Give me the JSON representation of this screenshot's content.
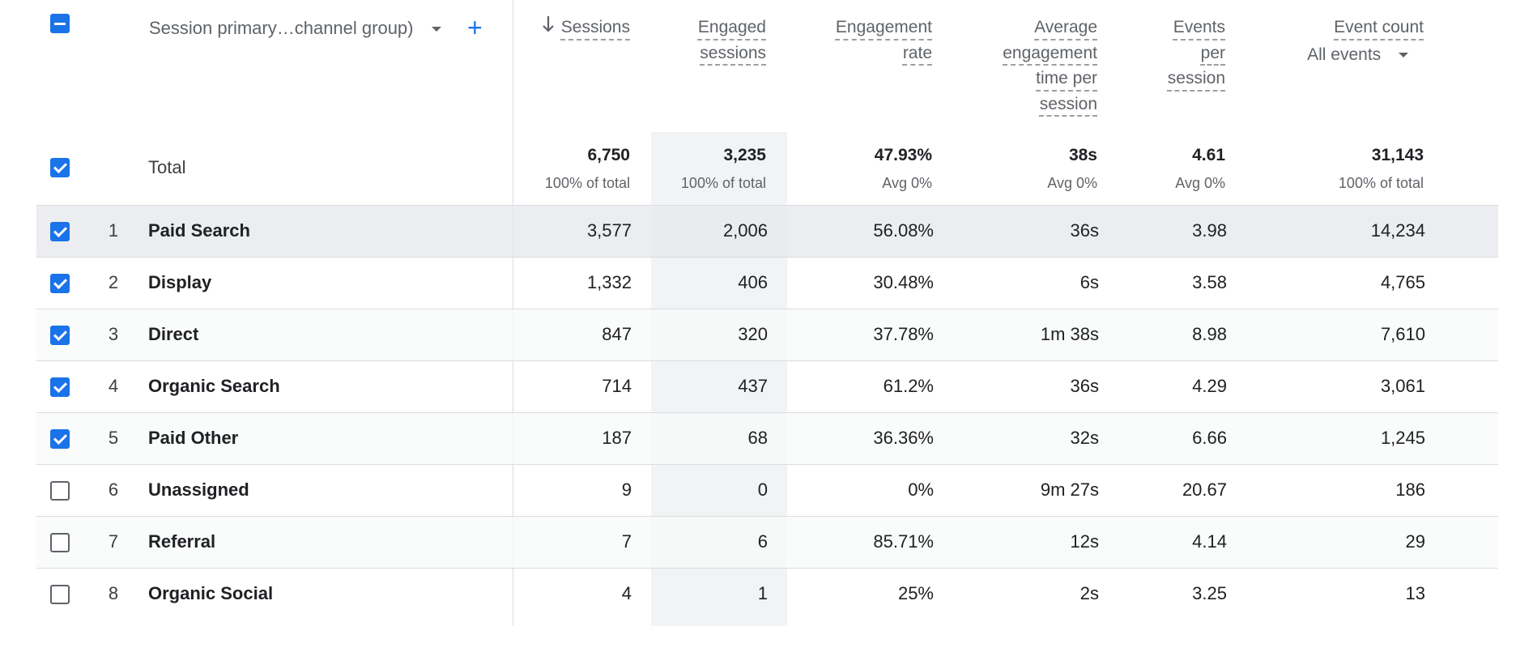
{
  "header": {
    "dimension_label": "Session primary…channel group)",
    "add_dimension_symbol": "+",
    "columns": {
      "sessions": "Sessions",
      "engaged": [
        "Engaged",
        "sessions"
      ],
      "engagement_rate": [
        "Engagement",
        "rate"
      ],
      "avg_engagement_time": [
        "Average",
        "engagement",
        "time per",
        "session"
      ],
      "events_per_session": [
        "Events",
        "per",
        "session"
      ],
      "event_count": "Event count",
      "event_filter": "All events"
    }
  },
  "totals": {
    "label": "Total",
    "sessions": "6,750",
    "sessions_sub": "100% of total",
    "engaged": "3,235",
    "engaged_sub": "100% of total",
    "rate": "47.93%",
    "rate_sub": "Avg 0%",
    "time": "38s",
    "time_sub": "Avg 0%",
    "eps": "4.61",
    "eps_sub": "Avg 0%",
    "events": "31,143",
    "events_sub": "100% of total"
  },
  "rows": [
    {
      "rank": "1",
      "name": "Paid Search",
      "sessions": "3,577",
      "engaged": "2,006",
      "rate": "56.08%",
      "time": "36s",
      "eps": "3.98",
      "events": "14,234",
      "checked": true
    },
    {
      "rank": "2",
      "name": "Display",
      "sessions": "1,332",
      "engaged": "406",
      "rate": "30.48%",
      "time": "6s",
      "eps": "3.58",
      "events": "4,765",
      "checked": true
    },
    {
      "rank": "3",
      "name": "Direct",
      "sessions": "847",
      "engaged": "320",
      "rate": "37.78%",
      "time": "1m 38s",
      "eps": "8.98",
      "events": "7,610",
      "checked": true
    },
    {
      "rank": "4",
      "name": "Organic Search",
      "sessions": "714",
      "engaged": "437",
      "rate": "61.2%",
      "time": "36s",
      "eps": "4.29",
      "events": "3,061",
      "checked": true
    },
    {
      "rank": "5",
      "name": "Paid Other",
      "sessions": "187",
      "engaged": "68",
      "rate": "36.36%",
      "time": "32s",
      "eps": "6.66",
      "events": "1,245",
      "checked": true
    },
    {
      "rank": "6",
      "name": "Unassigned",
      "sessions": "9",
      "engaged": "0",
      "rate": "0%",
      "time": "9m 27s",
      "eps": "20.67",
      "events": "186",
      "checked": false
    },
    {
      "rank": "7",
      "name": "Referral",
      "sessions": "7",
      "engaged": "6",
      "rate": "85.71%",
      "time": "12s",
      "eps": "4.14",
      "events": "29",
      "checked": false
    },
    {
      "rank": "8",
      "name": "Organic Social",
      "sessions": "4",
      "engaged": "1",
      "rate": "25%",
      "time": "2s",
      "eps": "3.25",
      "events": "13",
      "checked": false
    }
  ],
  "colors": {
    "accent": "#1a73e8",
    "highlight_column": "#f1f3f4",
    "divider": "#dadce0",
    "muted_text": "#5f6368"
  },
  "icons": {
    "sort": "arrow-down-icon",
    "dropdown": "caret-down-icon",
    "add": "plus-icon"
  }
}
